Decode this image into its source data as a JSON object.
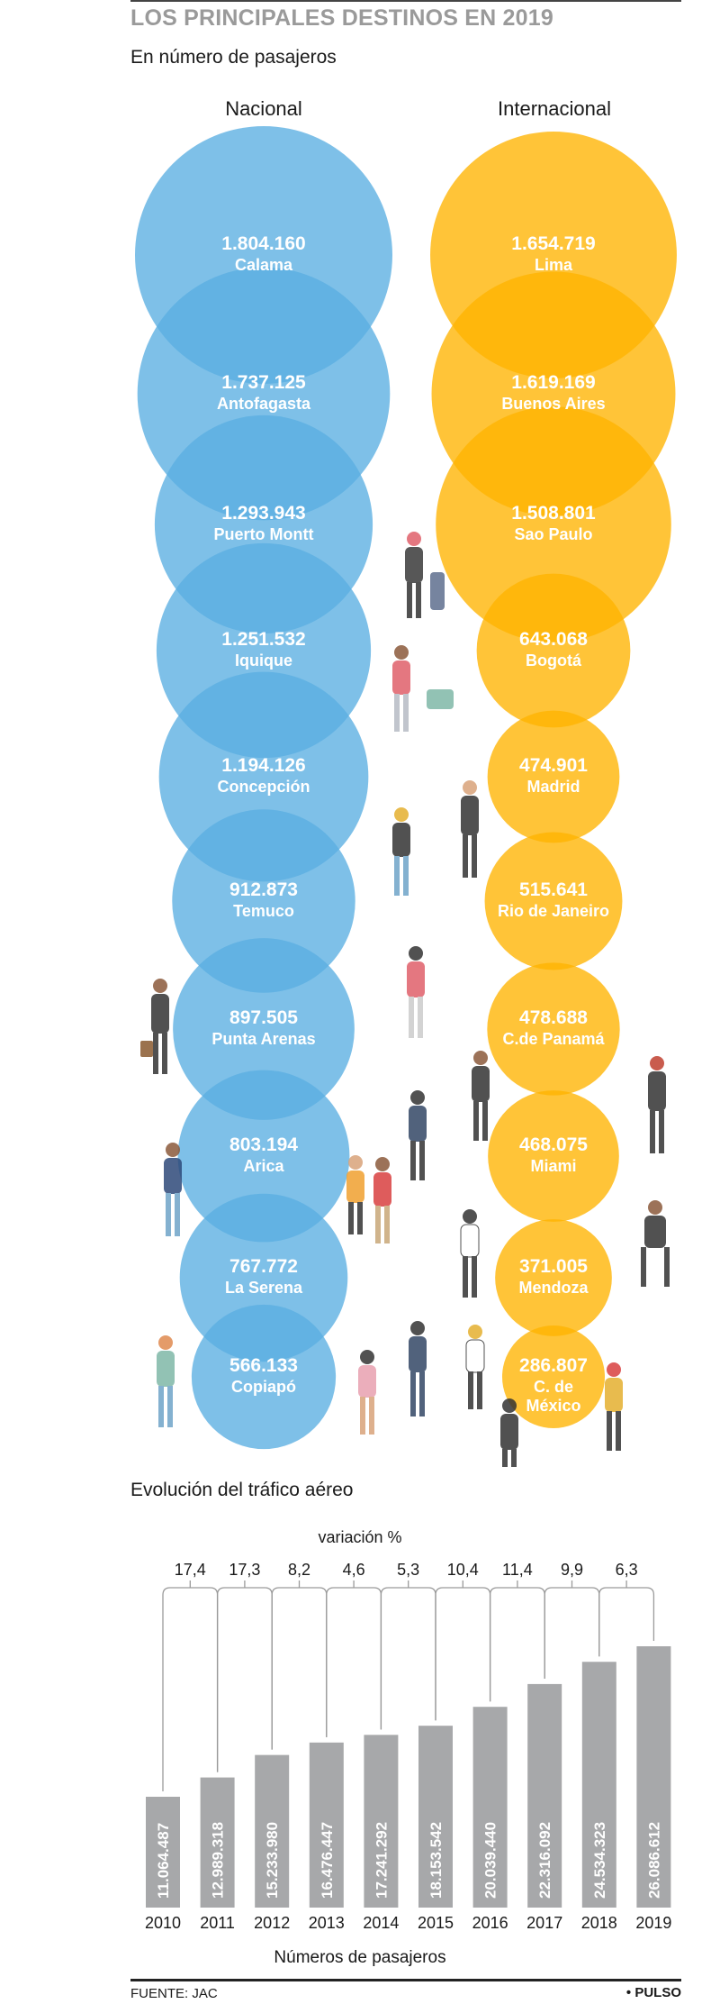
{
  "header": {
    "title": "LOS PRINCIPALES DESTINOS EN 2019",
    "subtitle": "En número de pasajeros",
    "col_national": "Nacional",
    "col_international": "Internacional"
  },
  "colors": {
    "national": "#5aaee2",
    "international": "#ffb400",
    "bar": "#a7a8aa"
  },
  "chart_data": [
    {
      "type": "bubble",
      "title": "LOS PRINCIPALES DESTINOS EN 2019",
      "subtitle": "En número de pasajeros",
      "series": [
        {
          "name": "Nacional",
          "categories": [
            "Calama",
            "Antofagasta",
            "Puerto Montt",
            "Iquique",
            "Concepción",
            "Temuco",
            "Punta Arenas",
            "Arica",
            "La Serena",
            "Copiapó"
          ],
          "values": [
            1804160,
            1737125,
            1293943,
            1251532,
            1194126,
            912873,
            897505,
            803194,
            767772,
            566133
          ],
          "labels": [
            "1.804.160",
            "1.737.125",
            "1.293.943",
            "1.251.532",
            "1.194.126",
            "912.873",
            "897.505",
            "803.194",
            "767.772",
            "566.133"
          ]
        },
        {
          "name": "Internacional",
          "categories": [
            "Lima",
            "Buenos Aires",
            "Sao Paulo",
            "Bogotá",
            "Madrid",
            "Rio de Janeiro",
            "C.de Panamá",
            "Miami",
            "Mendoza",
            "C. de México"
          ],
          "values": [
            1654719,
            1619169,
            1508801,
            643068,
            474901,
            515641,
            478688,
            468075,
            371005,
            286807
          ],
          "labels": [
            "1.654.719",
            "1.619.169",
            "1.508.801",
            "643.068",
            "474.901",
            "515.641",
            "478.688",
            "468.075",
            "371.005",
            "286.807"
          ]
        }
      ]
    },
    {
      "type": "bar",
      "title": "Evolución del tráfico aéreo",
      "xlabel": "Números de pasajeros",
      "variation_label": "variación %",
      "categories": [
        "2010",
        "2011",
        "2012",
        "2013",
        "2014",
        "2015",
        "2016",
        "2017",
        "2018",
        "2019"
      ],
      "values": [
        11064487,
        12989318,
        15233980,
        16476447,
        17241292,
        18153542,
        20039440,
        22316092,
        24534323,
        26086612
      ],
      "value_labels": [
        "11.064.487",
        "12.989.318",
        "15.233.980",
        "16.476.447",
        "17.241.292",
        "18.153.542",
        "20.039.440",
        "22.316.092",
        "24.534.323",
        "26.086.612"
      ],
      "variation": [
        "17,4",
        "17,3",
        "8,2",
        "4,6",
        "5,3",
        "10,4",
        "11,4",
        "9,9",
        "6,3"
      ]
    }
  ],
  "footer": {
    "source": "FUENTE: JAC",
    "brand": "• PULSO"
  }
}
